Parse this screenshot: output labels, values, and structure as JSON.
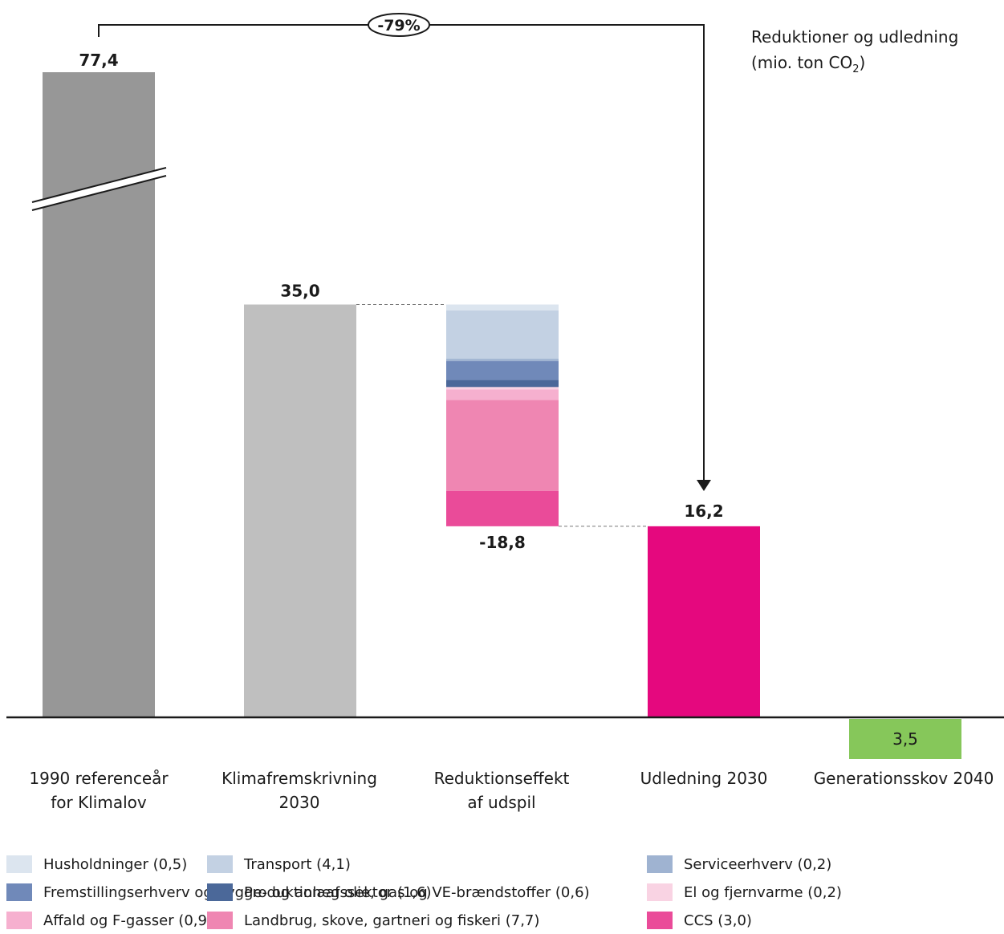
{
  "title": "Reduktioner og udledning",
  "unit": {
    "prefix": "(mio. ton CO",
    "subscript": "2",
    "suffix": ")"
  },
  "change_badge": "-79%",
  "chart_data": {
    "type": "bar",
    "subtype": "waterfall",
    "axis_break": true,
    "categories": [
      "1990 referenceår\nfor Klimalov",
      "Klimafremskrivning\n2030",
      "Reduktionseffekt\naf udspil",
      "Udledning 2030",
      "Generationsskov 2040"
    ],
    "bars": [
      {
        "value": 77.4,
        "label": "77,4",
        "color": "#979797",
        "broken": true
      },
      {
        "value": 35.0,
        "label": "35,0",
        "color": "#bfbfbf"
      },
      {
        "value": -18.8,
        "label": "-18,8",
        "stacked": true
      },
      {
        "value": 16.2,
        "label": "16,2",
        "color": "#e5087e"
      },
      {
        "value": -3.5,
        "label": "3,5",
        "color": "#86c75a"
      }
    ],
    "reduction_components": [
      {
        "name": "Husholdninger (0,5)",
        "value": 0.5,
        "color": "#dce5ef"
      },
      {
        "name": "Transport (4,1)",
        "value": 4.1,
        "color": "#c3d1e3"
      },
      {
        "name": "Serviceerhverv (0,2)",
        "value": 0.2,
        "color": "#9fb3d1"
      },
      {
        "name": "Fremstillingserhverv og bygge- og anlægssektor (1,6)",
        "value": 1.6,
        "color": "#7089b9"
      },
      {
        "name": "Produktion af olie, gas og VE-brændstoffer (0,6)",
        "value": 0.6,
        "color": "#4b6899"
      },
      {
        "name": "El og fjernvarme (0,2)",
        "value": 0.2,
        "color": "#f9d3e3"
      },
      {
        "name": "Affald og F-gasser (0,9)",
        "value": 0.9,
        "color": "#f6b0cf"
      },
      {
        "name": "Landbrug, skove, gartneri og fiskeri (7,7)",
        "value": 7.7,
        "color": "#ef86b2"
      },
      {
        "name": "CCS (3,0)",
        "value": 3.0,
        "color": "#ea4b99"
      }
    ],
    "legend_order": [
      0,
      3,
      6,
      1,
      4,
      7,
      2,
      5,
      8
    ]
  }
}
